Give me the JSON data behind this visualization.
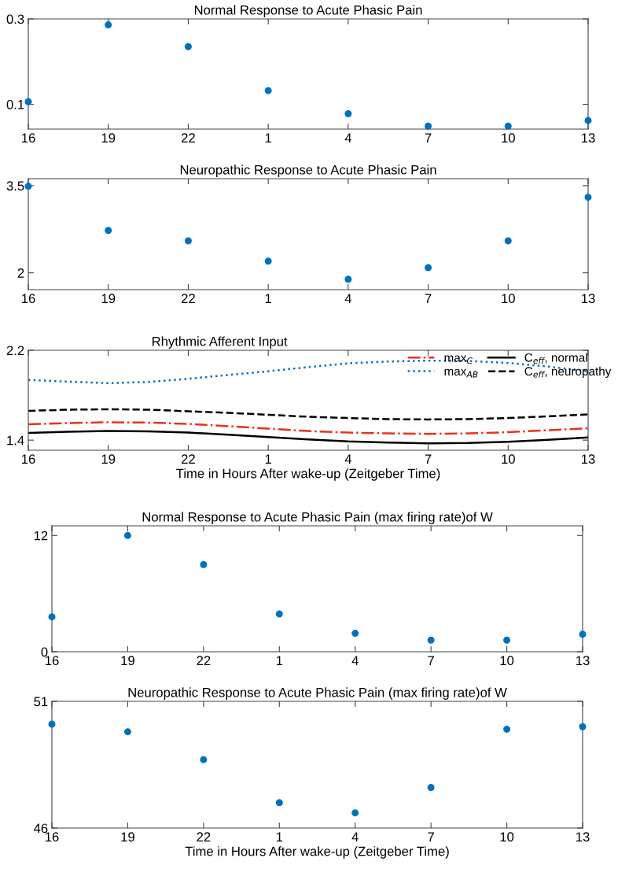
{
  "chart_data": [
    {
      "type": "scatter",
      "title": "Normal Response to Acute Phasic Pain",
      "categories": [
        "16",
        "19",
        "22",
        "1",
        "4",
        "7",
        "10",
        "13"
      ],
      "series": [
        {
          "color": "#0072bd",
          "values": [
            0.106,
            0.286,
            0.235,
            0.132,
            0.078,
            0.049,
            0.049,
            0.062
          ]
        }
      ],
      "marker": "circle",
      "ylim": [
        0.042,
        0.3
      ],
      "yticks": [
        0.1,
        0.3
      ],
      "grid": false,
      "legend": false
    },
    {
      "type": "scatter",
      "title": "Neuropathic Response to Acute Phasic Pain",
      "categories": [
        "16",
        "19",
        "22",
        "1",
        "4",
        "7",
        "10",
        "13"
      ],
      "series": [
        {
          "color": "#0072bd",
          "values": [
            3.49,
            2.73,
            2.55,
            2.2,
            1.89,
            2.09,
            2.55,
            3.3
          ]
        }
      ],
      "marker": "circle",
      "ylim": [
        1.71,
        3.62
      ],
      "yticks": [
        2,
        3.5
      ],
      "grid": false,
      "legend": false
    },
    {
      "type": "line",
      "title": "Rhythmic Afferent Input",
      "xlabel": "Time in Hours After wake-up (Zeitgeber Time)",
      "categories": [
        "16",
        null,
        "19",
        null,
        "22",
        null,
        "1",
        null,
        "4",
        null,
        "7",
        null,
        "10",
        null,
        "13"
      ],
      "series": [
        {
          "name": "max$_{C}$",
          "color": "#e8311f",
          "line_style": "dashdot",
          "values": [
            1.541,
            1.552,
            1.559,
            1.556,
            1.545,
            1.524,
            1.502,
            1.481,
            1.467,
            1.46,
            1.456,
            1.46,
            1.471,
            1.488,
            1.506
          ]
        },
        {
          "name": "max$_{AB}$",
          "color": "#0072bd",
          "line_style": "dotted",
          "values": [
            1.936,
            1.92,
            1.907,
            1.918,
            1.946,
            1.98,
            2.013,
            2.05,
            2.084,
            2.1,
            2.108,
            2.105,
            2.087,
            2.055,
            2.013
          ]
        },
        {
          "name": "C$_{eff}$, normal",
          "color": "#000000",
          "line_style": "solid",
          "values": [
            1.464,
            1.474,
            1.481,
            1.478,
            1.467,
            1.449,
            1.428,
            1.407,
            1.389,
            1.379,
            1.372,
            1.375,
            1.386,
            1.403,
            1.424
          ]
        },
        {
          "name": "C$_{eff}$, neuropathy",
          "color": "#000000",
          "line_style": "dashed",
          "values": [
            1.661,
            1.671,
            1.675,
            1.671,
            1.657,
            1.643,
            1.626,
            1.608,
            1.597,
            1.587,
            1.584,
            1.587,
            1.597,
            1.612,
            1.629
          ]
        }
      ],
      "marker": "none",
      "ylim": [
        1.31,
        2.2
      ],
      "yticks": [
        1.4,
        2.2
      ],
      "grid": false,
      "legend": "top right"
    },
    {
      "type": "scatter",
      "title": "Normal Response to Acute Phasic Pain (max firing rate)of W",
      "categories": [
        "16",
        "19",
        "22",
        "1",
        "4",
        "7",
        "10",
        "13"
      ],
      "series": [
        {
          "color": "#0072bd",
          "values": [
            3.6,
            12,
            9,
            3.9,
            1.9,
            1.2,
            1.2,
            1.8
          ]
        }
      ],
      "marker": "circle",
      "ylim": [
        0,
        13
      ],
      "yticks": [
        0,
        12
      ],
      "grid": false,
      "legend": false
    },
    {
      "type": "scatter",
      "title": "Neuropathic Response to Acute Phasic Pain (max firing rate)of W",
      "xlabel": "Time in Hours After wake-up (Zeitgeber Time)",
      "categories": [
        "16",
        "19",
        "22",
        "1",
        "4",
        "7",
        "10",
        "13"
      ],
      "series": [
        {
          "color": "#0072bd",
          "values": [
            50.1,
            49.8,
            48.7,
            47,
            46.6,
            47.6,
            49.9,
            50
          ]
        }
      ],
      "marker": "circle",
      "ylim": [
        46,
        51
      ],
      "yticks": [
        46,
        51
      ],
      "grid": false,
      "legend": false
    }
  ]
}
